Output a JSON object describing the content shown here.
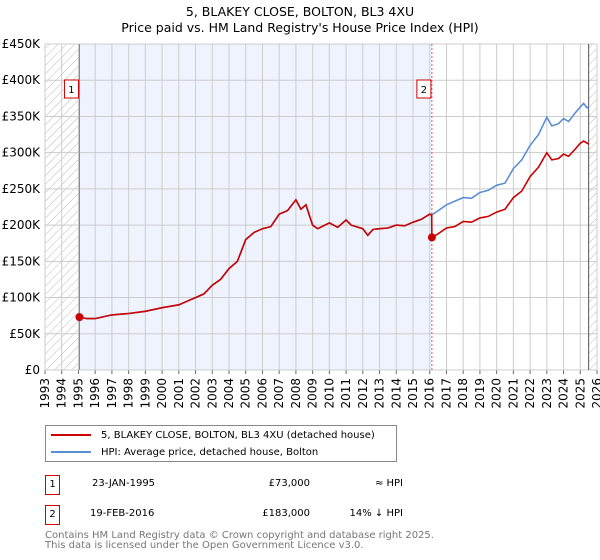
{
  "chart_data": {
    "type": "line",
    "title": "5, BLAKEY CLOSE, BOLTON, BL3 4XU",
    "subtitle": "Price paid vs. HM Land Registry's House Price Index (HPI)",
    "xlabel": "",
    "ylabel": "",
    "xlim": [
      1993,
      2026
    ],
    "ylim": [
      0,
      450000
    ],
    "x_ticks": [
      "1993",
      "1994",
      "1995",
      "1996",
      "1997",
      "1998",
      "1999",
      "2000",
      "2001",
      "2002",
      "2003",
      "2004",
      "2005",
      "2006",
      "2007",
      "2008",
      "2009",
      "2010",
      "2011",
      "2012",
      "2013",
      "2014",
      "2015",
      "2016",
      "2017",
      "2018",
      "2019",
      "2020",
      "2021",
      "2022",
      "2023",
      "2024",
      "2025",
      "2026"
    ],
    "y_ticks": [
      {
        "v": 0,
        "label": "£0"
      },
      {
        "v": 50000,
        "label": "£50K"
      },
      {
        "v": 100000,
        "label": "£100K"
      },
      {
        "v": 150000,
        "label": "£150K"
      },
      {
        "v": 200000,
        "label": "£200K"
      },
      {
        "v": 250000,
        "label": "£250K"
      },
      {
        "v": 300000,
        "label": "£300K"
      },
      {
        "v": 350000,
        "label": "£350K"
      },
      {
        "v": 400000,
        "label": "£400K"
      },
      {
        "v": 450000,
        "label": "£450K"
      }
    ],
    "grid": true,
    "series": [
      {
        "name": "HPI: Average price, detached house, Bolton",
        "color": "#5b8fd4",
        "x": [
          1995.06,
          1995.5,
          1996,
          1997,
          1998,
          1999,
          2000,
          2001,
          2001.5,
          2002,
          2002.5,
          2003,
          2003.5,
          2004,
          2004.5,
          2005,
          2005.5,
          2006,
          2006.5,
          2007,
          2007.5,
          2008,
          2008.3,
          2008.6,
          2009,
          2009.3,
          2010,
          2010.5,
          2011,
          2011.3,
          2012,
          2012.3,
          2012.6,
          2013,
          2013.5,
          2014,
          2014.5,
          2015,
          2015.5,
          2016,
          2016.13,
          2017,
          2018,
          2018.5,
          2019,
          2019.5,
          2020,
          2020.5,
          2021,
          2021.5,
          2022,
          2022.5,
          2023,
          2023.3,
          2023.7,
          2024,
          2024.3,
          2024.7,
          2025,
          2025.2,
          2025.4,
          2025.5
        ],
        "y": [
          73000,
          71000,
          71000,
          76000,
          78000,
          81000,
          86000,
          90000,
          95000,
          100000,
          105000,
          117000,
          125000,
          140000,
          150000,
          180000,
          190000,
          195000,
          198000,
          215000,
          220000,
          235000,
          222000,
          228000,
          200000,
          195000,
          203000,
          197000,
          207000,
          200000,
          195000,
          186000,
          194000,
          195000,
          196000,
          200000,
          199000,
          204000,
          208000,
          215000,
          214000,
          228000,
          238000,
          237000,
          245000,
          248000,
          255000,
          258000,
          278000,
          290000,
          310000,
          325000,
          349000,
          337000,
          340000,
          347000,
          343000,
          355000,
          363000,
          368000,
          362000,
          364000
        ]
      },
      {
        "name": "5, BLAKEY CLOSE, BOLTON, BL3 4XU (detached house)",
        "color": "#cc0000",
        "x": [
          1995.06,
          1995.5,
          1996,
          1997,
          1998,
          1999,
          2000,
          2001,
          2001.5,
          2002,
          2002.5,
          2003,
          2003.5,
          2004,
          2004.5,
          2005,
          2005.5,
          2006,
          2006.5,
          2007,
          2007.5,
          2008,
          2008.3,
          2008.6,
          2009,
          2009.3,
          2010,
          2010.5,
          2011,
          2011.3,
          2012,
          2012.3,
          2012.6,
          2013,
          2013.5,
          2014,
          2014.5,
          2015,
          2015.5,
          2016,
          2016.12,
          2016.13,
          2016.5,
          2017,
          2017.5,
          2018,
          2018.5,
          2019,
          2019.5,
          2020,
          2020.5,
          2021,
          2021.5,
          2022,
          2022.5,
          2023,
          2023.3,
          2023.7,
          2024,
          2024.3,
          2024.7,
          2025,
          2025.2,
          2025.5
        ],
        "y": [
          73000,
          71000,
          71000,
          76000,
          78000,
          81000,
          86000,
          90000,
          95000,
          100000,
          105000,
          117000,
          125000,
          140000,
          150000,
          180000,
          190000,
          195000,
          198000,
          215000,
          220000,
          235000,
          222000,
          228000,
          200000,
          195000,
          203000,
          197000,
          207000,
          200000,
          195000,
          186000,
          194000,
          195000,
          196000,
          200000,
          199000,
          204000,
          208000,
          215000,
          214000,
          183000,
          188000,
          196000,
          198000,
          205000,
          204000,
          210000,
          212000,
          218000,
          222000,
          238000,
          247000,
          267000,
          280000,
          300000,
          290000,
          292000,
          298000,
          295000,
          305000,
          313000,
          316000,
          312000
        ]
      }
    ],
    "sales": [
      {
        "id": "1",
        "x": 1995.06,
        "y": 73000,
        "date": "23-JAN-1995",
        "price": "£73,000",
        "hpi": "≈ HPI"
      },
      {
        "id": "2",
        "x": 2016.13,
        "y": 183000,
        "date": "19-FEB-2016",
        "price": "£183,000",
        "hpi": "14% ↓ HPI"
      }
    ],
    "data_end": 2025.5,
    "legend_placement": "bottom"
  },
  "footer": {
    "line1": "Contains HM Land Registry data © Crown copyright and database right 2025.",
    "line2": "This data is licensed under the Open Government Licence v3.0."
  }
}
